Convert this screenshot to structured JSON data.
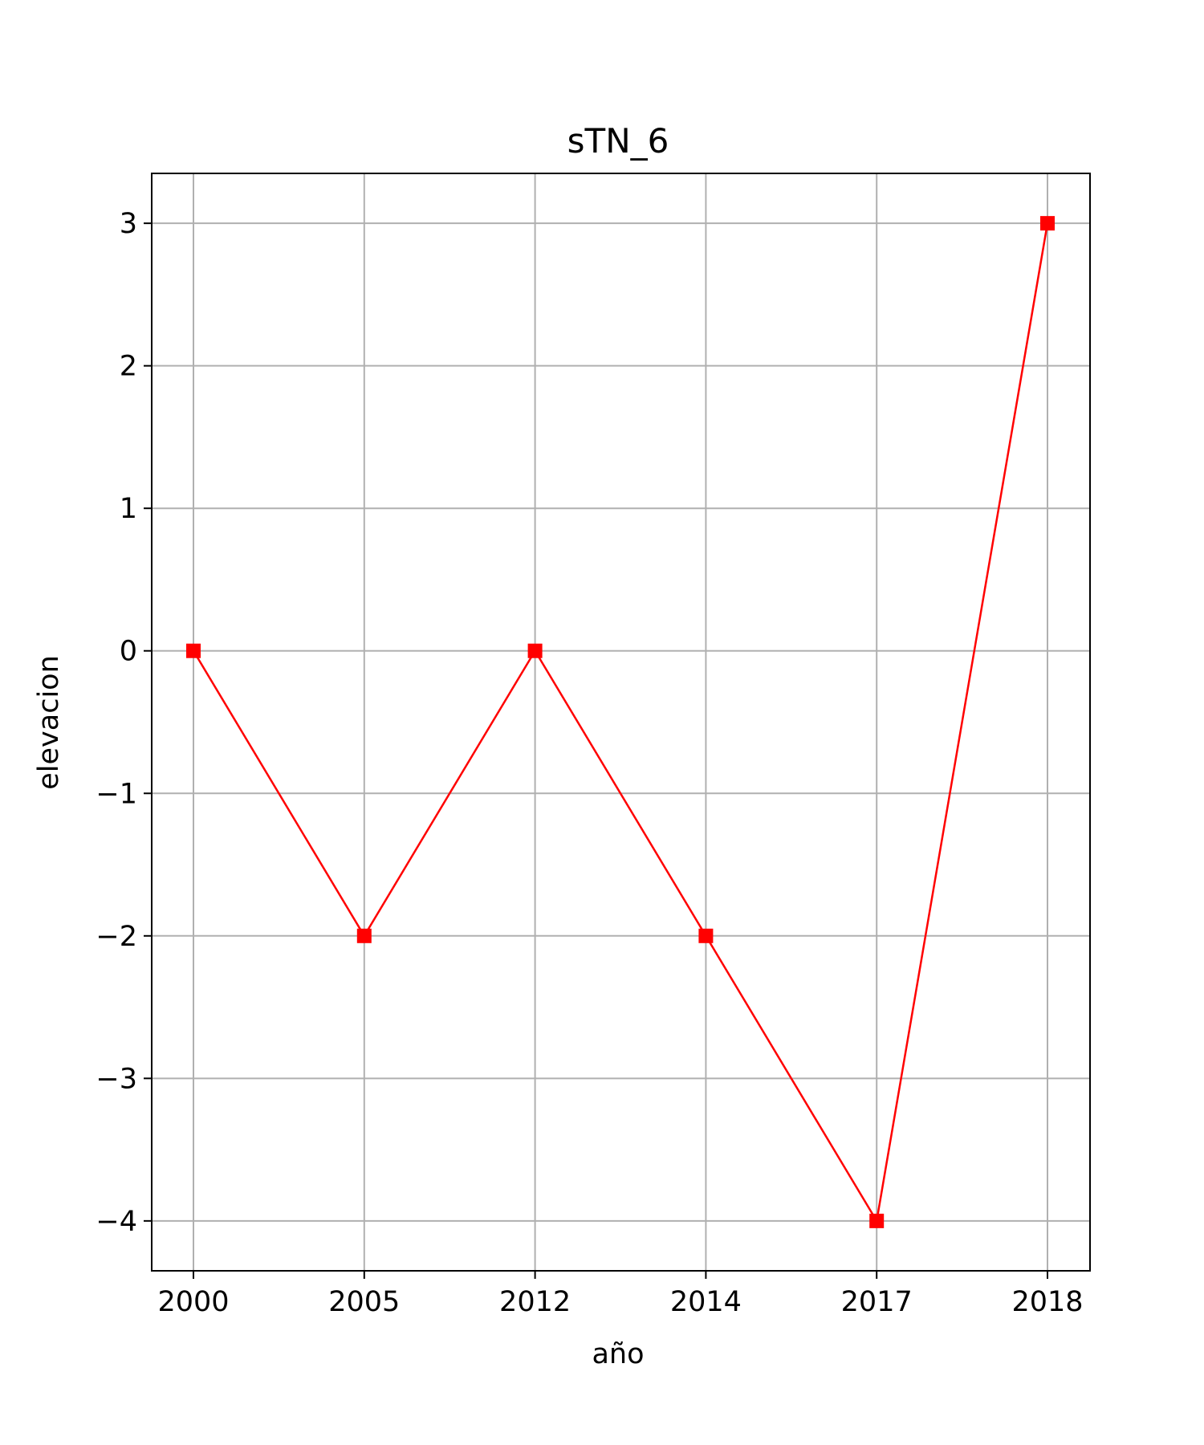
{
  "chart_data": {
    "type": "line",
    "title": "sTN_6",
    "xlabel": "año",
    "ylabel": "elevacion",
    "categories": [
      "2000",
      "2005",
      "2012",
      "2014",
      "2017",
      "2018"
    ],
    "series": [
      {
        "values": [
          0,
          -2,
          0,
          -2,
          -4,
          3
        ],
        "color": "#ff0000",
        "marker": "square"
      }
    ],
    "y_ticks": [
      3,
      2,
      1,
      0,
      -1,
      -2,
      -3,
      -4
    ],
    "y_tick_labels": [
      "3",
      "2",
      "1",
      "0",
      "−1",
      "−2",
      "−3",
      "−4"
    ],
    "ylim": [
      -4.35,
      3.35
    ],
    "grid": true,
    "grid_color": "#b0b0b0",
    "axes_color": "#000000"
  }
}
